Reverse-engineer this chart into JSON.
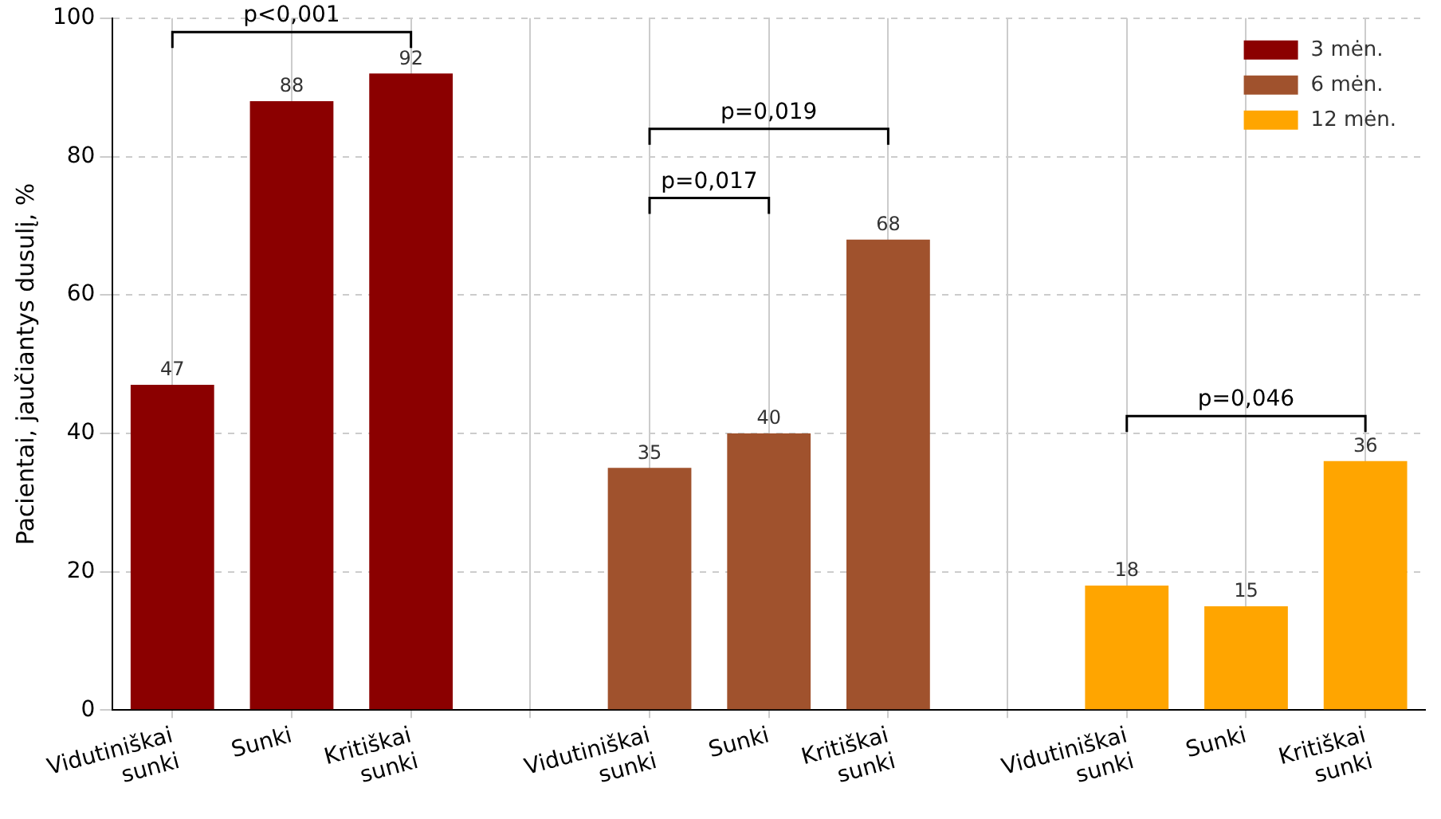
{
  "chart_data": {
    "type": "bar",
    "ylabel": "Pacientai, jaučiantys dusulį, %",
    "categories": [
      "Vidutiniškai sunki",
      "Sunki",
      "Kritiškai sunki",
      null,
      "Vidutiniškai sunki",
      "Sunki",
      "Kritiškai sunki",
      null,
      "Vidutiniškai sunki",
      "Sunki",
      "Kritiškai sunki"
    ],
    "series": [
      {
        "name": "3 mėn.",
        "color": "#8b0000",
        "values": [
          47,
          88,
          92,
          null,
          null,
          null,
          null,
          null,
          null,
          null,
          null
        ]
      },
      {
        "name": "6 mėn.",
        "color": "#a0522d",
        "values": [
          null,
          null,
          null,
          null,
          35,
          40,
          68,
          null,
          null,
          null,
          null
        ]
      },
      {
        "name": "12 mėn.",
        "color": "#ffa500",
        "values": [
          null,
          null,
          null,
          null,
          null,
          null,
          null,
          null,
          18,
          15,
          36
        ]
      }
    ],
    "ylim": [
      0,
      100
    ],
    "yticks": [
      0,
      20,
      40,
      60,
      80,
      100
    ],
    "grid": true,
    "legend": "top right",
    "data_labels": true,
    "annotations": [
      "p<0,001",
      "p=0,017",
      "p=0,019",
      "p=0,046"
    ]
  }
}
